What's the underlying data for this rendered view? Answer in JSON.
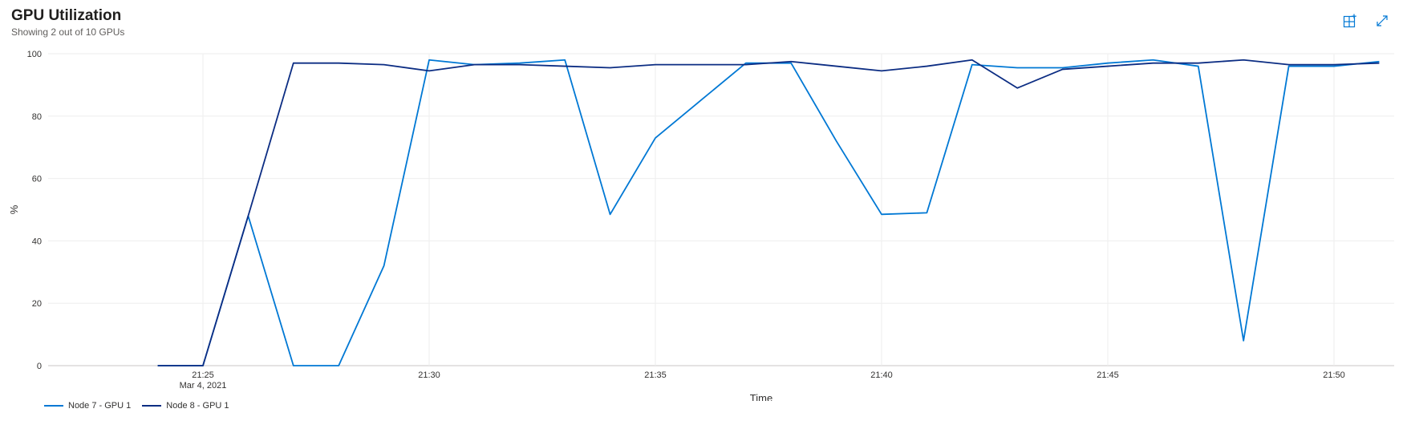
{
  "header": {
    "title": "GPU Utilization",
    "subtitle": "Showing 2 out of 10 GPUs"
  },
  "toolbar": {
    "pin_icon": "grid-add-icon",
    "expand_icon": "expand-icon",
    "accent": "#0078d4"
  },
  "chart_data": {
    "type": "line",
    "xlabel": "Time",
    "ylabel": "%",
    "ylim": [
      0,
      100
    ],
    "yticks": [
      0,
      20,
      40,
      60,
      80,
      100
    ],
    "x_ticks": [
      {
        "label": "21:25",
        "sublabel": "Mar 4, 2021"
      },
      {
        "label": "21:30",
        "sublabel": ""
      },
      {
        "label": "21:35",
        "sublabel": ""
      },
      {
        "label": "21:40",
        "sublabel": ""
      },
      {
        "label": "21:45",
        "sublabel": ""
      },
      {
        "label": "21:50",
        "sublabel": ""
      }
    ],
    "x": [
      "21:24",
      "21:25",
      "21:26",
      "21:27",
      "21:28",
      "21:29",
      "21:30",
      "21:31",
      "21:32",
      "21:33",
      "21:34",
      "21:35",
      "21:36",
      "21:37",
      "21:38",
      "21:39",
      "21:40",
      "21:41",
      "21:42",
      "21:43",
      "21:44",
      "21:45",
      "21:46",
      "21:47",
      "21:48",
      "21:49",
      "21:50",
      "21:51"
    ],
    "grid": true,
    "legend_position": "bottom-left",
    "series": [
      {
        "name": "Node 7 - GPU 1",
        "color": "#0078d4",
        "values": [
          0,
          0,
          48,
          0,
          0,
          32,
          98,
          96.5,
          97,
          98,
          48.5,
          73,
          85,
          97,
          97,
          72,
          48.5,
          49,
          96.5,
          95.5,
          95.5,
          97,
          98,
          96,
          8,
          96,
          96,
          97.5
        ]
      },
      {
        "name": "Node 8 - GPU 1",
        "color": "#0c2d83",
        "values": [
          0,
          0,
          48,
          97,
          97,
          96.5,
          94.5,
          96.5,
          96.5,
          96,
          95.5,
          96.5,
          96.5,
          96.5,
          97.5,
          96,
          94.5,
          96,
          98,
          89,
          95,
          96,
          97,
          97,
          98,
          96.5,
          96.5,
          97
        ]
      }
    ]
  }
}
